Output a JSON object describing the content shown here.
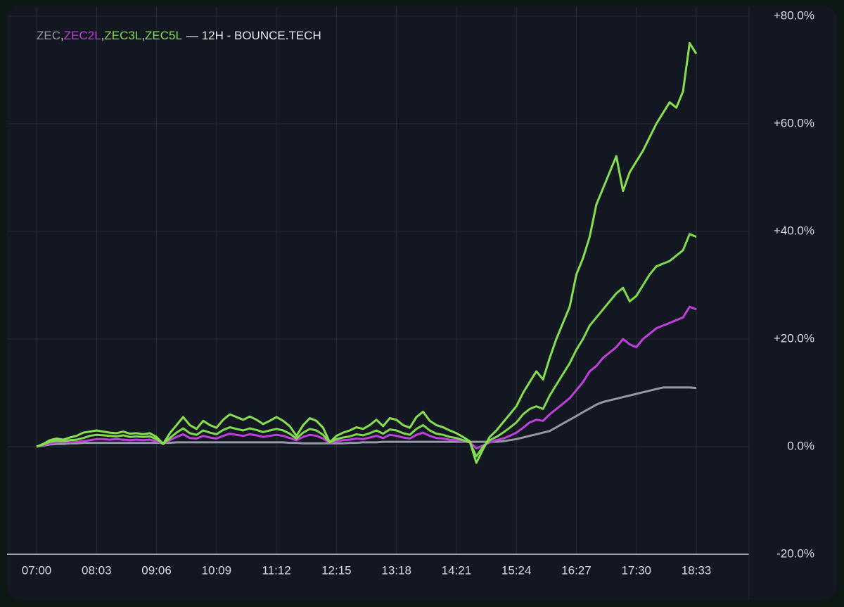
{
  "chart_data": {
    "type": "line",
    "title": "— 12H - BOUNCE.TECH",
    "legend_separator": ",",
    "legend_position": "top-left",
    "x": [
      "07:00",
      "07:07",
      "07:14",
      "07:21",
      "07:28",
      "07:35",
      "07:42",
      "07:49",
      "07:56",
      "08:03",
      "08:10",
      "08:17",
      "08:24",
      "08:31",
      "08:38",
      "08:45",
      "08:52",
      "08:59",
      "09:06",
      "09:13",
      "09:20",
      "09:27",
      "09:34",
      "09:41",
      "09:48",
      "09:55",
      "10:02",
      "10:09",
      "10:16",
      "10:23",
      "10:30",
      "10:37",
      "10:44",
      "10:51",
      "10:58",
      "11:05",
      "11:12",
      "11:19",
      "11:26",
      "11:33",
      "11:40",
      "11:47",
      "11:54",
      "12:01",
      "12:08",
      "12:15",
      "12:22",
      "12:29",
      "12:36",
      "12:43",
      "12:50",
      "12:57",
      "13:04",
      "13:11",
      "13:18",
      "13:25",
      "13:32",
      "13:39",
      "13:46",
      "13:53",
      "14:00",
      "14:07",
      "14:14",
      "14:21",
      "14:28",
      "14:35",
      "14:42",
      "14:49",
      "14:56",
      "15:03",
      "15:10",
      "15:17",
      "15:24",
      "15:31",
      "15:38",
      "15:45",
      "15:52",
      "15:59",
      "16:06",
      "16:13",
      "16:20",
      "16:27",
      "16:34",
      "16:41",
      "16:48",
      "16:55",
      "17:02",
      "17:09",
      "17:16",
      "17:23",
      "17:30",
      "17:37",
      "17:44",
      "17:51",
      "17:58",
      "18:05",
      "18:12",
      "18:19",
      "18:26",
      "18:33"
    ],
    "xticks": [
      "07:00",
      "08:03",
      "09:06",
      "10:09",
      "11:12",
      "12:15",
      "13:18",
      "14:21",
      "15:24",
      "16:27",
      "17:30",
      "18:33"
    ],
    "ylim": [
      -20,
      80
    ],
    "yticks": [
      {
        "value": -20,
        "label": "-20.0%"
      },
      {
        "value": 0,
        "label": "0.0%"
      },
      {
        "value": 20,
        "label": "+20.0%"
      },
      {
        "value": 40,
        "label": "+40.0%"
      },
      {
        "value": 60,
        "label": "+60.0%"
      },
      {
        "value": 80,
        "label": "+80.0%"
      }
    ],
    "grid": true,
    "series": [
      {
        "name": "ZEC",
        "color": "#9598a8",
        "values": [
          0,
          0.2,
          0.4,
          0.5,
          0.5,
          0.6,
          0.6,
          0.7,
          0.7,
          0.7,
          0.7,
          0.7,
          0.7,
          0.7,
          0.7,
          0.7,
          0.7,
          0.7,
          0.7,
          0.7,
          0.7,
          0.8,
          0.8,
          0.8,
          0.8,
          0.8,
          0.8,
          0.8,
          0.8,
          0.8,
          0.8,
          0.8,
          0.8,
          0.8,
          0.8,
          0.8,
          0.8,
          0.8,
          0.7,
          0.7,
          0.6,
          0.6,
          0.6,
          0.6,
          0.6,
          0.6,
          0.6,
          0.7,
          0.7,
          0.8,
          0.8,
          0.8,
          0.9,
          0.9,
          0.9,
          0.9,
          0.9,
          0.9,
          0.9,
          0.9,
          0.9,
          0.9,
          0.9,
          0.9,
          0.9,
          0.9,
          0.9,
          0.9,
          0.9,
          0.9,
          1.0,
          1.2,
          1.4,
          1.7,
          2.0,
          2.3,
          2.6,
          2.9,
          3.6,
          4.3,
          5.0,
          5.7,
          6.4,
          7.1,
          7.8,
          8.3,
          8.6,
          8.9,
          9.2,
          9.5,
          9.8,
          10.1,
          10.4,
          10.7,
          11.0,
          11.0,
          11.0,
          11.0,
          11.0,
          10.9
        ]
      },
      {
        "name": "ZEC2L",
        "color": "#c03fdc",
        "values": [
          0,
          0.3,
          0.6,
          0.8,
          0.9,
          0.8,
          0.9,
          1.0,
          1.2,
          1.4,
          1.4,
          1.3,
          1.4,
          1.3,
          1.2,
          1.3,
          1.2,
          1.3,
          1.0,
          0.5,
          1.2,
          1.8,
          2.3,
          1.6,
          1.5,
          2.0,
          1.7,
          1.5,
          2.0,
          2.4,
          2.2,
          2.0,
          2.3,
          2.1,
          1.8,
          2.0,
          2.2,
          2.0,
          1.6,
          1.2,
          1.8,
          2.2,
          2.0,
          1.5,
          0.7,
          1.0,
          1.2,
          1.3,
          1.5,
          1.4,
          1.7,
          2.0,
          1.6,
          2.2,
          2.0,
          1.7,
          1.5,
          2.2,
          2.6,
          2.0,
          1.6,
          1.5,
          1.3,
          1.2,
          1.0,
          0.8,
          -0.3,
          0.2,
          0.8,
          1.2,
          1.5,
          2.0,
          2.6,
          3.5,
          4.5,
          5.0,
          4.8,
          6.0,
          7.0,
          8.0,
          9.0,
          10.5,
          12.0,
          14.0,
          15.0,
          16.5,
          17.5,
          18.5,
          20.0,
          19.0,
          18.5,
          20.0,
          21.0,
          22.0,
          22.5,
          23.0,
          23.5,
          24.0,
          26.0,
          25.5
        ]
      },
      {
        "name": "ZEC3L",
        "color": "#7fdb4c",
        "values": [
          0,
          0.4,
          0.9,
          1.1,
          1.0,
          1.2,
          1.3,
          1.6,
          2.0,
          2.2,
          2.1,
          2.0,
          1.9,
          2.1,
          1.8,
          1.9,
          1.8,
          1.9,
          1.4,
          0.5,
          1.6,
          2.6,
          3.4,
          2.5,
          2.2,
          3.0,
          2.6,
          2.3,
          3.1,
          3.6,
          3.3,
          3.0,
          3.4,
          3.1,
          2.7,
          3.0,
          3.3,
          3.0,
          2.4,
          1.5,
          2.6,
          3.3,
          3.0,
          2.2,
          0.8,
          1.4,
          1.7,
          1.9,
          2.3,
          2.1,
          2.5,
          3.0,
          2.4,
          3.2,
          3.0,
          2.5,
          2.2,
          3.3,
          4.0,
          3.0,
          2.4,
          2.2,
          1.8,
          1.6,
          1.2,
          0.8,
          -1.8,
          0,
          1.2,
          1.8,
          2.6,
          3.5,
          4.5,
          6.0,
          7.0,
          7.5,
          7.0,
          9.5,
          11.5,
          13.5,
          15.5,
          18.0,
          20.0,
          22.5,
          24.0,
          25.5,
          27.0,
          28.5,
          29.5,
          27.0,
          28.0,
          30.0,
          32.0,
          33.5,
          34.0,
          34.5,
          35.5,
          36.5,
          39.5,
          39.0
        ]
      },
      {
        "name": "ZEC5L",
        "color": "#86e04e",
        "values": [
          0,
          0.5,
          1.2,
          1.5,
          1.3,
          1.7,
          2.0,
          2.6,
          2.8,
          3.0,
          2.8,
          2.6,
          2.5,
          2.8,
          2.4,
          2.5,
          2.3,
          2.5,
          1.8,
          0.5,
          2.5,
          4.0,
          5.5,
          4.0,
          3.3,
          4.8,
          4.0,
          3.5,
          5.0,
          6.0,
          5.5,
          5.0,
          5.6,
          5.0,
          4.2,
          4.8,
          5.5,
          4.8,
          3.8,
          2.0,
          4.0,
          5.3,
          4.8,
          3.5,
          0.8,
          2.0,
          2.6,
          3.0,
          3.6,
          3.3,
          4.0,
          5.0,
          3.8,
          5.3,
          5.0,
          4.0,
          3.5,
          5.5,
          6.5,
          4.8,
          4.0,
          3.6,
          3.0,
          2.5,
          1.8,
          1.0,
          -3.0,
          -0.5,
          1.8,
          3.0,
          4.5,
          6.0,
          7.5,
          10.0,
          12.0,
          14.0,
          12.5,
          16.5,
          20.0,
          23.0,
          26.0,
          32.0,
          35.0,
          39.0,
          45.0,
          48.0,
          51.0,
          54.0,
          47.5,
          51.0,
          53.0,
          55.0,
          57.5,
          60.0,
          62.0,
          64.0,
          63.0,
          66.0,
          75.0,
          73.0
        ]
      }
    ]
  }
}
